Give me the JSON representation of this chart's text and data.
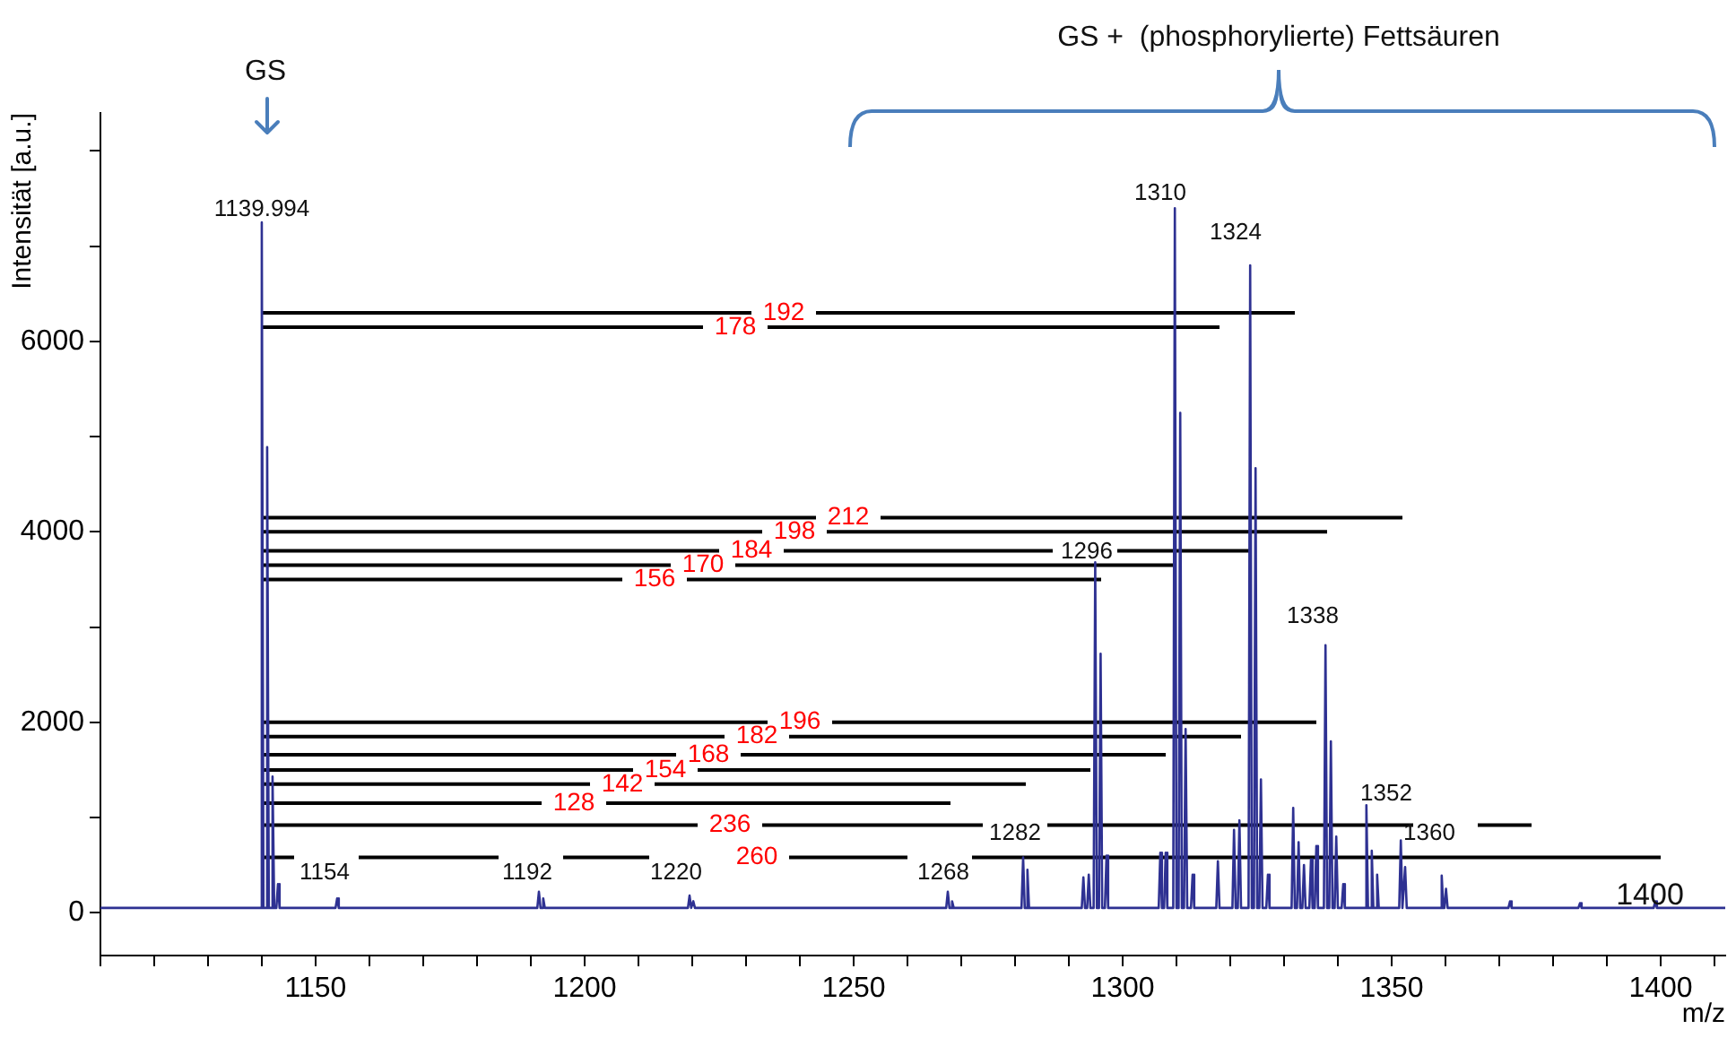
{
  "chart_data": {
    "type": "line",
    "xlabel": "m/z",
    "ylabel": "Intensität [a.u.]",
    "xlim": [
      1110,
      1412
    ],
    "ylim": [
      -450,
      8400
    ],
    "xticks": [
      {
        "value": 1110,
        "label": null
      },
      {
        "value": 1120,
        "label": null
      },
      {
        "value": 1130,
        "label": null
      },
      {
        "value": 1140,
        "label": null
      },
      1150,
      {
        "value": 1160,
        "label": null
      },
      {
        "value": 1170,
        "label": null
      },
      {
        "value": 1180,
        "label": null
      },
      {
        "value": 1190,
        "label": null
      },
      1200,
      {
        "value": 1210,
        "label": null
      },
      {
        "value": 1220,
        "label": null
      },
      {
        "value": 1230,
        "label": null
      },
      {
        "value": 1240,
        "label": null
      },
      1250,
      {
        "value": 1260,
        "label": null
      },
      {
        "value": 1270,
        "label": null
      },
      {
        "value": 1280,
        "label": null
      },
      {
        "value": 1290,
        "label": null
      },
      1300,
      {
        "value": 1310,
        "label": null
      },
      {
        "value": 1320,
        "label": null
      },
      {
        "value": 1330,
        "label": null
      },
      {
        "value": 1340,
        "label": null
      },
      1350,
      {
        "value": 1360,
        "label": null
      },
      {
        "value": 1370,
        "label": null
      },
      {
        "value": 1380,
        "label": null
      },
      {
        "value": 1390,
        "label": null
      },
      1400,
      {
        "value": 1410,
        "label": null
      }
    ],
    "yticks": [
      0,
      {
        "value": 1000,
        "label": null
      },
      2000,
      {
        "value": 3000,
        "label": null
      },
      4000,
      {
        "value": 5000,
        "label": null
      },
      6000,
      {
        "value": 7000,
        "label": null
      },
      {
        "value": 8000,
        "label": null
      }
    ],
    "grid": false,
    "legend": false,
    "marker": "none",
    "series": [
      {
        "color": "#2e3192",
        "x": [
          1110,
          1139.7,
          1139.99,
          1140.3,
          1140.7,
          1140.99,
          1141.3,
          1141.7,
          1141.99,
          1142.3,
          1142.7,
          1143,
          1143.3,
          1153.7,
          1154,
          1154.3,
          1191.2,
          1191.5,
          1191.8,
          1192.0,
          1192.3,
          1192.6,
          1219.2,
          1219.5,
          1219.8,
          1219.9,
          1220.2,
          1220.5,
          1267.2,
          1267.5,
          1267.8,
          1268.0,
          1268.3,
          1268.6,
          1281.2,
          1281.5,
          1281.8,
          1282.0,
          1282.3,
          1282.6,
          1292.4,
          1292.7,
          1293.0,
          1293.4,
          1293.7,
          1294.0,
          1294.6,
          1294.9,
          1295.2,
          1295.6,
          1295.9,
          1296.2,
          1296.7,
          1297,
          1297.3,
          1306.7,
          1307,
          1307.3,
          1307.7,
          1308,
          1308.3,
          1309.4,
          1309.7,
          1310.0,
          1310.4,
          1310.7,
          1311.0,
          1311.4,
          1311.7,
          1312.0,
          1312.7,
          1313,
          1313.3,
          1317.4,
          1317.7,
          1318.0,
          1320.4,
          1320.7,
          1321.0,
          1321.4,
          1321.7,
          1322.0,
          1323.4,
          1323.7,
          1324.0,
          1324.4,
          1324.7,
          1325.0,
          1325.4,
          1325.7,
          1326.0,
          1326.7,
          1327,
          1327.3,
          1331.4,
          1331.7,
          1332.0,
          1332.4,
          1332.7,
          1333.0,
          1333.4,
          1333.7,
          1334.0,
          1334.7,
          1335,
          1335.3,
          1335.7,
          1336,
          1336.3,
          1337.4,
          1337.7,
          1338.0,
          1338.4,
          1338.7,
          1339.0,
          1339.4,
          1339.7,
          1340.0,
          1340.7,
          1341,
          1341.3,
          1345.0,
          1345.3,
          1345.6,
          1346.0,
          1346.3,
          1346.6,
          1347.0,
          1347.3,
          1347.6,
          1351.4,
          1351.7,
          1352.0,
          1352.2,
          1352.5,
          1352.8,
          1359.0,
          1359.3,
          1359.6,
          1359.8,
          1360.1,
          1360.4,
          1371.7,
          1372,
          1372.3,
          1384.7,
          1385,
          1385.3,
          1398.7,
          1399,
          1399.3,
          1412
        ],
        "values": [
          50,
          50,
          7250,
          50,
          50,
          4890,
          50,
          50,
          1430,
          50,
          50,
          300,
          50,
          50,
          150,
          50,
          50,
          220,
          50,
          50,
          150,
          50,
          50,
          180,
          50,
          50,
          120,
          50,
          50,
          220,
          50,
          50,
          120,
          50,
          50,
          580,
          50,
          50,
          450,
          50,
          50,
          370,
          50,
          50,
          400,
          50,
          50,
          3680,
          50,
          50,
          2720,
          50,
          50,
          600,
          50,
          50,
          630,
          50,
          50,
          630,
          50,
          50,
          7400,
          50,
          50,
          5250,
          50,
          50,
          1930,
          50,
          50,
          400,
          50,
          50,
          540,
          50,
          50,
          870,
          50,
          50,
          970,
          50,
          50,
          6800,
          50,
          50,
          4670,
          50,
          50,
          1400,
          50,
          50,
          400,
          50,
          50,
          1100,
          50,
          50,
          740,
          50,
          50,
          500,
          50,
          50,
          560,
          50,
          50,
          700,
          50,
          50,
          2810,
          50,
          50,
          1800,
          50,
          50,
          800,
          50,
          50,
          300,
          50,
          50,
          1130,
          50,
          50,
          650,
          50,
          50,
          400,
          50,
          50,
          760,
          50,
          50,
          480,
          50,
          50,
          390,
          50,
          50,
          250,
          50,
          50,
          120,
          50,
          50,
          100,
          50,
          50,
          120,
          50,
          50
        ]
      },
      {
        "color": "#000000",
        "x": [
          1140,
          1231,
          1237,
          1243,
          1332
        ],
        "values": [
          6300,
          6300,
          null,
          6300,
          6300
        ],
        "value_labels": [
          null,
          null,
          "192",
          null,
          null
        ]
      },
      {
        "color": "#000000",
        "x": [
          1140,
          1222,
          1228,
          1234,
          1318
        ],
        "values": [
          6150,
          6150,
          null,
          6150,
          6150
        ],
        "value_labels": [
          null,
          null,
          "178",
          null,
          null
        ]
      },
      {
        "color": "#000000",
        "x": [
          1140,
          1243,
          1249,
          1255,
          1352
        ],
        "values": [
          4150,
          4150,
          null,
          4150,
          4150
        ],
        "value_labels": [
          null,
          null,
          "212",
          null,
          null
        ]
      },
      {
        "color": "#000000",
        "x": [
          1140,
          1233,
          1239,
          1245,
          1338
        ],
        "values": [
          4000,
          4000,
          null,
          4000,
          4000
        ],
        "value_labels": [
          null,
          null,
          "198",
          null,
          null
        ]
      },
      {
        "color": "#000000",
        "x": [
          1140,
          1225,
          1231,
          1237,
          1287,
          1293,
          1299,
          1324
        ],
        "values": [
          3800,
          3800,
          null,
          3800,
          3800,
          null,
          3800,
          3800
        ],
        "value_labels": [
          null,
          null,
          "184",
          null,
          null,
          null,
          null,
          null
        ]
      },
      {
        "color": "#000000",
        "x": [
          1140,
          1216,
          1222,
          1228,
          1310
        ],
        "values": [
          3650,
          3650,
          null,
          3650,
          3650
        ],
        "value_labels": [
          null,
          null,
          "170",
          null,
          null
        ]
      },
      {
        "color": "#000000",
        "x": [
          1140,
          1207,
          1213,
          1219,
          1296
        ],
        "values": [
          3500,
          3500,
          null,
          3500,
          3500
        ],
        "value_labels": [
          null,
          null,
          "156",
          null,
          null
        ]
      },
      {
        "color": "#000000",
        "x": [
          1140,
          1234,
          1240,
          1246,
          1336
        ],
        "values": [
          2000,
          2000,
          null,
          2000,
          2000
        ],
        "value_labels": [
          null,
          null,
          "196",
          null,
          null
        ]
      },
      {
        "color": "#000000",
        "x": [
          1140,
          1226,
          1232,
          1238,
          1322
        ],
        "values": [
          1850,
          1850,
          null,
          1850,
          1850
        ],
        "value_labels": [
          null,
          null,
          "182",
          null,
          null
        ]
      },
      {
        "color": "#000000",
        "x": [
          1140,
          1217,
          1223,
          1229,
          1308
        ],
        "values": [
          1660,
          1660,
          null,
          1660,
          1660
        ],
        "value_labels": [
          null,
          null,
          "168",
          null,
          null
        ]
      },
      {
        "color": "#000000",
        "x": [
          1140,
          1209,
          1215,
          1221,
          1294
        ],
        "values": [
          1500,
          1500,
          null,
          1500,
          1500
        ],
        "value_labels": [
          null,
          null,
          "154",
          null,
          null
        ]
      },
      {
        "color": "#000000",
        "x": [
          1140,
          1201,
          1207,
          1213,
          1282
        ],
        "values": [
          1350,
          1350,
          null,
          1350,
          1350
        ],
        "value_labels": [
          null,
          null,
          "142",
          null,
          null
        ]
      },
      {
        "color": "#000000",
        "x": [
          1140,
          1192,
          1198,
          1204,
          1268
        ],
        "values": [
          1150,
          1150,
          null,
          1150,
          1150
        ],
        "value_labels": [
          null,
          null,
          "128",
          null,
          null
        ]
      },
      {
        "color": "#000000",
        "x": [
          1140,
          1221,
          1227,
          1233,
          1274,
          1280,
          1286,
          1354,
          1360,
          1366,
          1376
        ],
        "values": [
          920,
          920,
          null,
          920,
          920,
          null,
          920,
          920,
          null,
          920,
          920
        ],
        "value_labels": [
          null,
          null,
          "236",
          null,
          null,
          null,
          null,
          null,
          null,
          null,
          null
        ]
      },
      {
        "color": "#000000",
        "x": [
          1140,
          1146,
          1152,
          1158,
          1184,
          1190,
          1196,
          1212,
          1218,
          1232,
          1238,
          1260,
          1266,
          1272,
          1400
        ],
        "values": [
          580,
          580,
          null,
          580,
          580,
          null,
          580,
          580,
          null,
          null,
          580,
          580,
          null,
          580,
          580
        ],
        "value_labels": [
          null,
          null,
          null,
          null,
          null,
          null,
          null,
          null,
          null,
          "260",
          null,
          null,
          null,
          null,
          null
        ]
      }
    ],
    "annotations": [
      "GS",
      "GS +  (phosphorylierte) Fettsäuren",
      "1139.994",
      "1310",
      "1324",
      "1296",
      "1338",
      "1352",
      "1282",
      "1360",
      "1154",
      "1192",
      "1220",
      "1268",
      "1400"
    ]
  }
}
